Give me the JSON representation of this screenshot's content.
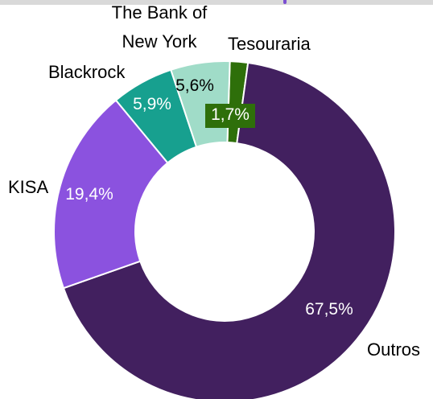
{
  "chart_data": {
    "type": "pie",
    "variant": "donut",
    "title": "",
    "legend": "none",
    "slices": [
      {
        "name": "Tesouraria",
        "value": 1.7,
        "label": "1,7%",
        "color": "#2e6f0a",
        "label_color": "#ffffff"
      },
      {
        "name": "Outros",
        "value": 67.5,
        "label": "67,5%",
        "color": "#42205f",
        "label_color": "#ffffff"
      },
      {
        "name": "KISA",
        "value": 19.4,
        "label": "19,4%",
        "color": "#8b52df",
        "label_color": "#ffffff"
      },
      {
        "name": "Blackrock",
        "value": 5.9,
        "label": "5,9%",
        "color": "#17a08f",
        "label_color": "#ffffff"
      },
      {
        "name": "The Bank of New York",
        "value": 5.6,
        "label": "5,6%",
        "color": "#a0dcc8",
        "label_color": "#000000"
      }
    ]
  },
  "colors": {
    "background": "#ffffff",
    "category_label": "#000000"
  }
}
